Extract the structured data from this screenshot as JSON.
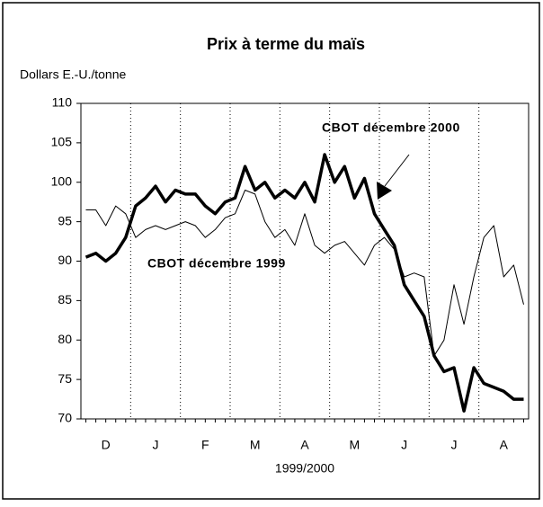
{
  "chart_data": {
    "type": "line",
    "title": "Prix à terme du maïs",
    "ylabel": "Dollars E.-U./tonne",
    "xlabel": "1999/2000",
    "categories": [
      null,
      null,
      "D",
      null,
      null,
      null,
      null,
      "J",
      null,
      null,
      null,
      null,
      "F",
      null,
      null,
      null,
      null,
      "M",
      null,
      null,
      null,
      null,
      "A",
      null,
      null,
      null,
      null,
      "M",
      null,
      null,
      null,
      null,
      "J",
      null,
      null,
      null,
      null,
      "J",
      null,
      null,
      null,
      null,
      "A",
      null,
      null
    ],
    "series": [
      {
        "name": "CBOT décembre 2000",
        "color": "#000000",
        "line_width": 3.5,
        "values": [
          90.5,
          91,
          90,
          91,
          93,
          97,
          98,
          99.5,
          97.5,
          99,
          98.5,
          98.5,
          97,
          96,
          97.5,
          98,
          102,
          99,
          100,
          98,
          99,
          98,
          100,
          97.5,
          103.5,
          100,
          102,
          98,
          100.5,
          96,
          94,
          92,
          87,
          85,
          83,
          78,
          76,
          76.5,
          71,
          76.5,
          74.5,
          74,
          73.5,
          72.5,
          72.5
        ]
      },
      {
        "name": "CBOT décembre 1999",
        "color": "#000000",
        "line_width": 1,
        "values": [
          96.5,
          96.5,
          94.5,
          97,
          96,
          93,
          94,
          94.5,
          94,
          94.5,
          95,
          94.5,
          93,
          94,
          95.5,
          96,
          99,
          98.5,
          95,
          93,
          94,
          92,
          96,
          92,
          91,
          92,
          92.5,
          91,
          89.5,
          92,
          93,
          91.5,
          88,
          88.5,
          88,
          78,
          80,
          87,
          82,
          88,
          93,
          94.5,
          88,
          89.5,
          84.5
        ]
      }
    ],
    "ylim": [
      70,
      110
    ],
    "yticks": [
      70,
      75,
      80,
      85,
      90,
      95,
      100,
      105,
      110
    ]
  }
}
